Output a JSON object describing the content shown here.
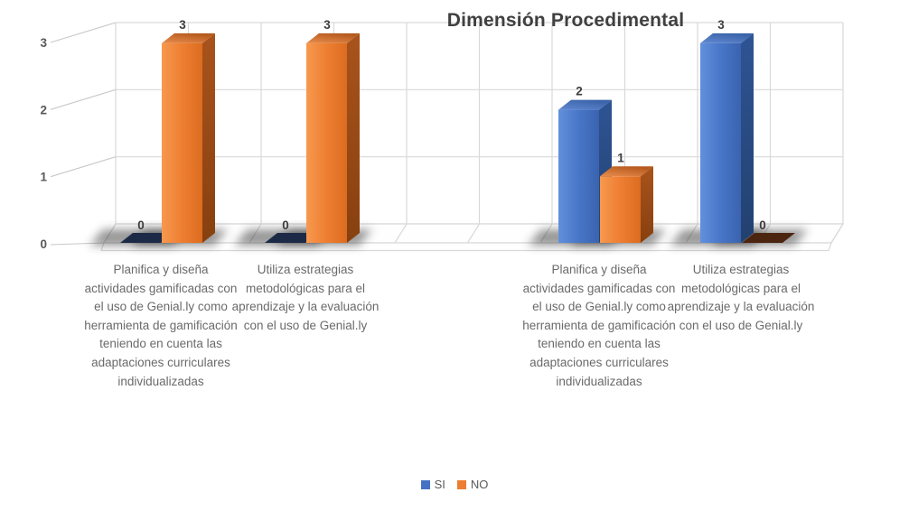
{
  "chart_data": {
    "type": "bar",
    "style": "3d-clustered-column",
    "title": "Dimensión Procedimental",
    "categories": [
      "Planifica y diseña actividades gamificadas con el uso de Genial.ly como herramienta de gamificación teniendo en cuenta las adaptaciones curriculares individualizadas",
      "Utiliza estrategias metodológicas para el aprendizaje y la evaluación con el uso de Genial.ly",
      "Planifica y diseña actividades gamificadas con el uso de Genial.ly como herramienta de gamificación teniendo en cuenta las adaptaciones curriculares individualizadas",
      "Utiliza estrategias metodológicas para el aprendizaje y la evaluación con el uso de Genial.ly"
    ],
    "series": [
      {
        "name": "SI",
        "color": "#4472C4",
        "zero_tile_color": "#1d2a47",
        "values": [
          0,
          0,
          2,
          3
        ]
      },
      {
        "name": "NO",
        "color": "#ED7D31",
        "zero_tile_color": "#4c2510",
        "values": [
          3,
          3,
          1,
          0
        ]
      }
    ],
    "y_ticks": [
      0,
      1,
      2,
      3
    ],
    "ylim": [
      0,
      3
    ],
    "data_labels": [
      [
        "0",
        "0",
        "2",
        "3"
      ],
      [
        "3",
        "3",
        "1",
        "0"
      ]
    ],
    "legend_position": "bottom",
    "grid": true,
    "colors": {
      "gridline": "#d9d9d9",
      "tick_label": "#595959",
      "data_label": "#3d3d3d",
      "category_label": "#6a6a6a",
      "title": "#404040"
    }
  }
}
